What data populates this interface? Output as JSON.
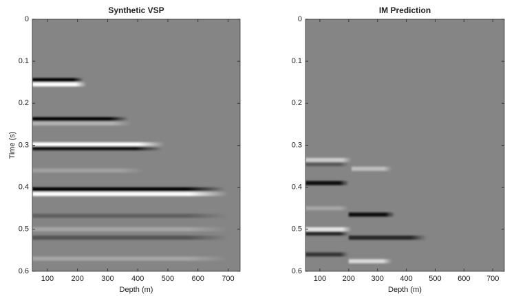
{
  "chart_data": [
    {
      "type": "image",
      "title": "Synthetic VSP",
      "xlabel": "Depth (m)",
      "ylabel": "Time (s)",
      "xlim": [
        50,
        740
      ],
      "ylim": [
        0,
        0.6
      ],
      "y_reversed": true,
      "xticks": [
        100,
        200,
        300,
        400,
        500,
        600,
        700
      ],
      "yticks": [
        0,
        0.1,
        0.2,
        0.3,
        0.4,
        0.5,
        0.6
      ],
      "background_color": "#858585",
      "events": [
        {
          "time": 0.145,
          "start_depth": 50,
          "end_depth": 220,
          "amplitude": -1
        },
        {
          "time": 0.155,
          "start_depth": 50,
          "end_depth": 230,
          "amplitude": 1
        },
        {
          "time": 0.238,
          "start_depth": 50,
          "end_depth": 370,
          "amplitude": -1
        },
        {
          "time": 0.248,
          "start_depth": 50,
          "end_depth": 380,
          "amplitude": 0.4
        },
        {
          "time": 0.298,
          "start_depth": 50,
          "end_depth": 490,
          "amplitude": 1
        },
        {
          "time": 0.307,
          "start_depth": 50,
          "end_depth": 480,
          "amplitude": -0.9
        },
        {
          "time": 0.36,
          "start_depth": 50,
          "end_depth": 420,
          "amplitude": 0.25
        },
        {
          "time": 0.405,
          "start_depth": 50,
          "end_depth": 690,
          "amplitude": -1
        },
        {
          "time": 0.416,
          "start_depth": 50,
          "end_depth": 700,
          "amplitude": 1
        },
        {
          "time": 0.468,
          "start_depth": 50,
          "end_depth": 700,
          "amplitude": -0.25
        },
        {
          "time": 0.5,
          "start_depth": 50,
          "end_depth": 700,
          "amplitude": 0.3
        },
        {
          "time": 0.52,
          "start_depth": 50,
          "end_depth": 700,
          "amplitude": -0.35
        },
        {
          "time": 0.57,
          "start_depth": 50,
          "end_depth": 700,
          "amplitude": 0.3
        }
      ]
    },
    {
      "type": "image",
      "title": "IM Prediction",
      "xlabel": "Depth (m)",
      "xlim": [
        50,
        740
      ],
      "ylim": [
        0,
        0.6
      ],
      "y_reversed": true,
      "xticks": [
        100,
        200,
        300,
        400,
        500,
        600,
        700
      ],
      "yticks": [
        0,
        0.1,
        0.2,
        0.3,
        0.4,
        0.5,
        0.6
      ],
      "background_color": "#858585",
      "events": [
        {
          "time": 0.335,
          "start_depth": 50,
          "end_depth": 210,
          "amplitude": 0.6
        },
        {
          "time": 0.345,
          "start_depth": 50,
          "end_depth": 200,
          "amplitude": -0.3
        },
        {
          "time": 0.356,
          "start_depth": 210,
          "end_depth": 350,
          "amplitude": 0.5
        },
        {
          "time": 0.39,
          "start_depth": 50,
          "end_depth": 200,
          "amplitude": -0.9
        },
        {
          "time": 0.45,
          "start_depth": 50,
          "end_depth": 200,
          "amplitude": 0.3
        },
        {
          "time": 0.465,
          "start_depth": 200,
          "end_depth": 360,
          "amplitude": -0.9
        },
        {
          "time": 0.5,
          "start_depth": 50,
          "end_depth": 210,
          "amplitude": 0.8
        },
        {
          "time": 0.51,
          "start_depth": 50,
          "end_depth": 200,
          "amplitude": -0.7
        },
        {
          "time": 0.52,
          "start_depth": 200,
          "end_depth": 470,
          "amplitude": -0.7
        },
        {
          "time": 0.56,
          "start_depth": 50,
          "end_depth": 200,
          "amplitude": -0.6
        },
        {
          "time": 0.576,
          "start_depth": 200,
          "end_depth": 350,
          "amplitude": 0.7
        }
      ]
    }
  ]
}
